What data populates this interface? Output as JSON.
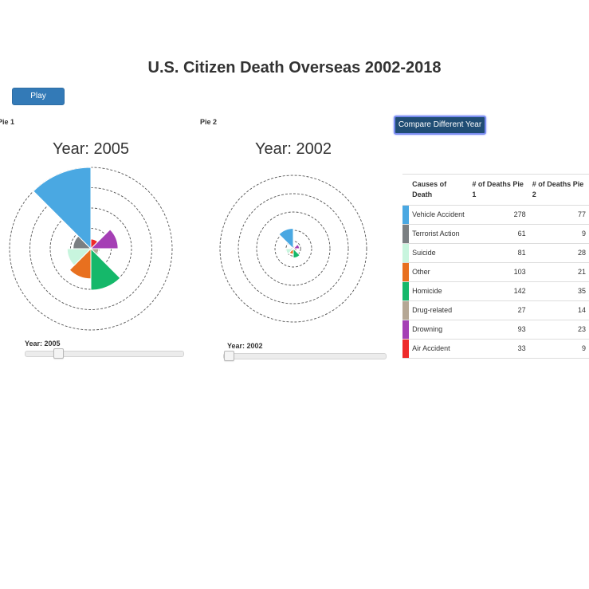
{
  "title": "U.S. Citizen Death Overseas 2002-2018",
  "play_label": "Play",
  "compare_label": "Compare Different Year",
  "pie1": {
    "label": "Pie 1",
    "year_title": "Year: 2005",
    "slider_label": "Year: 2005",
    "slider_fraction": 0.19
  },
  "pie2": {
    "label": "Pie 2",
    "year_title": "Year: 2002",
    "slider_label": "Year: 2002",
    "slider_fraction": 0.0
  },
  "table": {
    "headers": [
      "Causes of Death",
      "# of Deaths Pie 1",
      "# of Deaths Pie 2"
    ],
    "rows": [
      {
        "cause": "Vehicle Accident",
        "pie1": "278",
        "pie2": "77",
        "color": "#4aa8e2"
      },
      {
        "cause": "Terrorist Action",
        "pie1": "61",
        "pie2": "9",
        "color": "#7a7f82"
      },
      {
        "cause": "Suicide",
        "pie1": "81",
        "pie2": "28",
        "color": "#c8f5de"
      },
      {
        "cause": "Other",
        "pie1": "103",
        "pie2": "21",
        "color": "#e8701f"
      },
      {
        "cause": "Homicide",
        "pie1": "142",
        "pie2": "35",
        "color": "#15b86a"
      },
      {
        "cause": "Drug-related",
        "pie1": "27",
        "pie2": "14",
        "color": "#b5a795"
      },
      {
        "cause": "Drowning",
        "pie1": "93",
        "pie2": "23",
        "color": "#a53fb5"
      },
      {
        "cause": "Air Accident",
        "pie1": "33",
        "pie2": "9",
        "color": "#ee2a2a"
      }
    ]
  },
  "chart_data": [
    {
      "type": "polar-area",
      "title": "Year: 2005",
      "categories": [
        "Air Accident",
        "Drowning",
        "Drug-related",
        "Homicide",
        "Other",
        "Suicide",
        "Terrorist Action",
        "Vehicle Accident"
      ],
      "values": [
        33,
        93,
        27,
        142,
        103,
        81,
        61,
        278
      ],
      "colors": [
        "#ee2a2a",
        "#a53fb5",
        "#b5a795",
        "#15b86a",
        "#e8701f",
        "#c8f5de",
        "#7a7f82",
        "#4aa8e2"
      ],
      "rmax": 278,
      "grid_rings": [
        0.1,
        0.25,
        0.5,
        0.75,
        1.0
      ]
    },
    {
      "type": "polar-area",
      "title": "Year: 2002",
      "categories": [
        "Air Accident",
        "Drowning",
        "Drug-related",
        "Homicide",
        "Other",
        "Suicide",
        "Terrorist Action",
        "Vehicle Accident"
      ],
      "values": [
        9,
        23,
        14,
        35,
        21,
        28,
        9,
        77
      ],
      "colors": [
        "#ee2a2a",
        "#a53fb5",
        "#b5a795",
        "#15b86a",
        "#e8701f",
        "#c8f5de",
        "#7a7f82",
        "#4aa8e2"
      ],
      "rmax": 278,
      "grid_rings": [
        0.1,
        0.25,
        0.5,
        0.75,
        1.0
      ]
    }
  ]
}
